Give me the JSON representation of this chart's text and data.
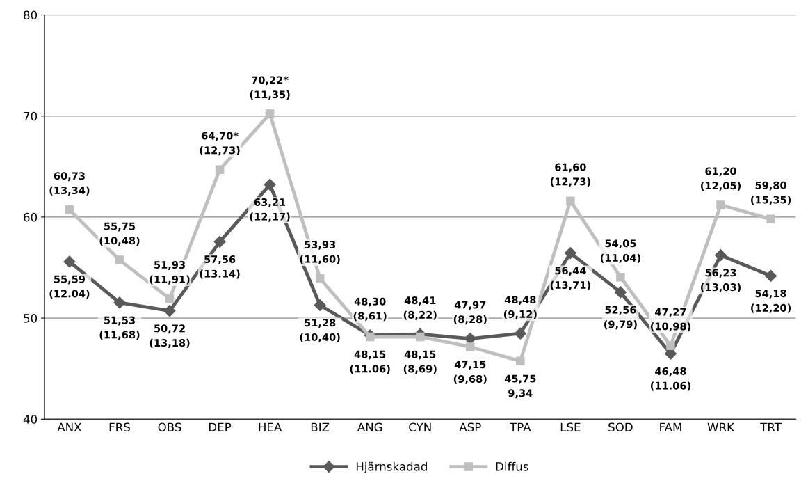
{
  "chart_data": {
    "type": "line",
    "categories": [
      "ANX",
      "FRS",
      "OBS",
      "DEP",
      "HEA",
      "BIZ",
      "ANG",
      "CYN",
      "ASP",
      "TPA",
      "LSE",
      "SOD",
      "FAM",
      "WRK",
      "TRT"
    ],
    "series": [
      {
        "name": "Hjärnskadad",
        "color": "#595959",
        "marker": "diamond",
        "values": [
          55.59,
          51.53,
          50.72,
          57.56,
          63.21,
          51.28,
          48.3,
          48.41,
          47.97,
          48.48,
          56.44,
          52.56,
          46.48,
          56.23,
          54.18
        ],
        "value_labels": [
          "55,59\n(12.04)",
          "51,53\n(11,68)",
          "50,72\n(13,18)",
          "57,56\n(13.14)",
          "63,21\n(12,17)",
          "51,28\n(10,40)",
          "48,30\n(8,61)",
          "48,41\n(8,22)",
          "47,97\n(8,28)",
          "48,48\n(9,12)",
          "56,44\n(13,71)",
          "52,56\n(9,79)",
          "46,48\n(11.06)",
          "56,23\n(13,03)",
          "54,18\n(12,20)"
        ]
      },
      {
        "name": "Diffus",
        "color": "#bfbfbf",
        "marker": "square",
        "values": [
          60.73,
          55.75,
          51.93,
          64.7,
          70.22,
          53.93,
          48.15,
          48.15,
          47.15,
          45.75,
          61.6,
          54.05,
          47.27,
          61.2,
          59.8
        ],
        "value_labels": [
          "60,73\n(13,34)",
          "55,75\n(10,48)",
          "51,93\n(11,91)",
          "64,70*\n(12,73)",
          "70,22*\n(11,35)",
          "53,93\n(11,60)",
          "48,15\n(11.06)",
          "48,15\n(8,69)",
          "47,15\n(9,68)",
          "45,75\n9,34",
          "61,60\n(12,73)",
          "54,05\n(11,04)",
          "47,27\n(10,98)",
          "61,20\n(12,05)",
          "59,80\n(15,35)"
        ]
      }
    ],
    "ylim": [
      40,
      80
    ],
    "yticks": [
      40,
      50,
      60,
      70,
      80
    ],
    "grid": "y",
    "legend": "bottom",
    "line_style": "solid"
  }
}
